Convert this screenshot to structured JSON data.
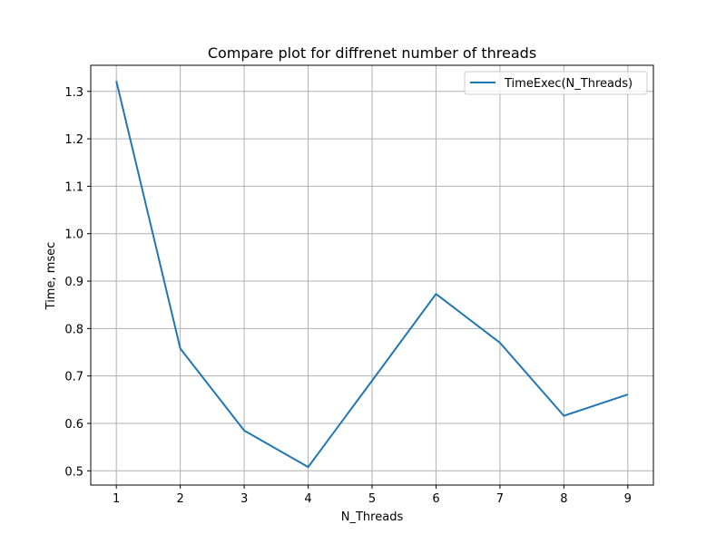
{
  "chart_data": {
    "type": "line",
    "title": "Compare plot for diffrenet number of threads",
    "xlabel": "N_Threads",
    "ylabel": "Time, msec",
    "x": [
      1,
      2,
      3,
      4,
      5,
      6,
      7,
      8,
      9
    ],
    "series": [
      {
        "name": "TimeExec(N_Threads)",
        "values": [
          1.322,
          0.758,
          0.585,
          0.508,
          0.69,
          0.873,
          0.77,
          0.616,
          0.661
        ],
        "color": "#1f77b4"
      }
    ],
    "xlim": [
      0.6,
      9.4
    ],
    "ylim": [
      0.47,
      1.355
    ],
    "xticks": [
      1,
      2,
      3,
      4,
      5,
      6,
      7,
      8,
      9
    ],
    "yticks": [
      0.5,
      0.6,
      0.7,
      0.8,
      0.9,
      1.0,
      1.1,
      1.2,
      1.3
    ],
    "ytick_labels": [
      "0.5",
      "0.6",
      "0.7",
      "0.8",
      "0.9",
      "1.0",
      "1.1",
      "1.2",
      "1.3"
    ],
    "grid": true,
    "legend_position": "top-right"
  }
}
